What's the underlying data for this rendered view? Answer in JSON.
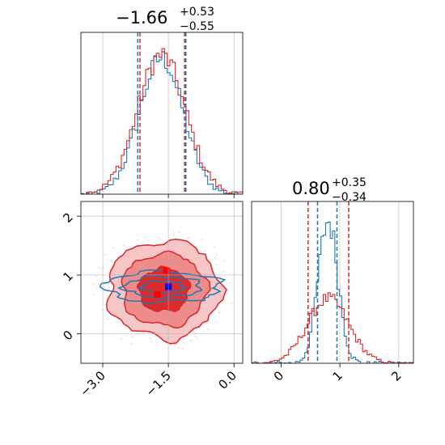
{
  "chart_data": {
    "type": "corner",
    "panels": [
      {
        "id": "hist-param1",
        "kind": "histogram",
        "title": {
          "median": "−1.66",
          "plus": "+0.53",
          "minus": "−0.55"
        },
        "xlim": [
          -3.5,
          0.2
        ],
        "grid": true,
        "series": [
          {
            "name": "blue",
            "color": "#1f77b4",
            "median": -1.66,
            "quantiles": [
              -2.2,
              -1.1
            ],
            "center": -1.66,
            "sigma": 0.5
          },
          {
            "name": "red",
            "color": "#d62728",
            "quantiles": [
              -2.15,
              -1.13
            ],
            "center": -1.66,
            "sigma": 0.55
          }
        ]
      },
      {
        "id": "hist-param2",
        "kind": "histogram",
        "title": {
          "median": "0.80",
          "plus": "+0.35",
          "minus": "−0.34"
        },
        "xlim": [
          -0.5,
          2.25
        ],
        "xticks": [
          0,
          1,
          2
        ],
        "xtick_labels": [
          "0",
          "1",
          "2"
        ],
        "grid": true,
        "series": [
          {
            "name": "blue",
            "color": "#1f77b4",
            "quantiles": [
              0.62,
              0.95
            ],
            "center": 0.8,
            "sigma": 0.17
          },
          {
            "name": "red",
            "color": "#d62728",
            "quantiles": [
              0.46,
              1.15
            ],
            "center": 0.8,
            "sigma": 0.35
          }
        ]
      },
      {
        "id": "joint-2d",
        "kind": "contour",
        "xlim": [
          -3.5,
          0.2
        ],
        "ylim": [
          -0.5,
          2.25
        ],
        "xticks": [
          -3.0,
          -1.5,
          0.0
        ],
        "xtick_labels": [
          "−3.0",
          "−1.5",
          "0.0"
        ],
        "yticks": [
          0,
          1,
          2
        ],
        "ytick_labels": [
          "0",
          "1",
          "2"
        ],
        "grid": true,
        "red_center": [
          -1.6,
          0.75
        ],
        "red_sigma": [
          0.55,
          0.35
        ],
        "blue_center": [
          -1.63,
          0.8
        ],
        "blue_sigma": [
          0.8,
          0.16
        ],
        "markers": [
          {
            "name": "blue-marker",
            "x": -1.5,
            "y": 0.8,
            "color": "#0000ff"
          },
          {
            "name": "red-marker-1",
            "x": -1.55,
            "y": 1.08,
            "color": "#ff0000"
          },
          {
            "name": "red-marker-2",
            "x": -1.75,
            "y": 0.67,
            "color": "#ff0000"
          }
        ]
      }
    ]
  }
}
